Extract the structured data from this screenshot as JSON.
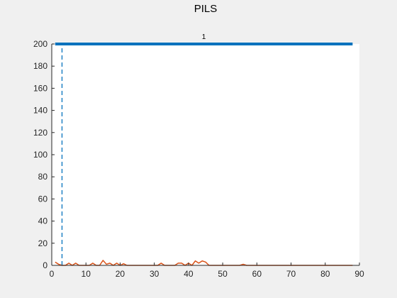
{
  "window": {
    "title": "PILS"
  },
  "chart_data": {
    "type": "line",
    "title": "PILS",
    "xlabel": "",
    "ylabel": "",
    "xlim": [
      0,
      90
    ],
    "ylim": [
      0,
      200
    ],
    "x_ticks": [
      0,
      10,
      20,
      30,
      40,
      50,
      60,
      70,
      80,
      90
    ],
    "y_ticks": [
      0,
      20,
      40,
      60,
      80,
      100,
      120,
      140,
      160,
      180,
      200
    ],
    "grid": false,
    "legend": "none",
    "colors": {
      "axes_bg": "#ffffff",
      "figure_bg": "#f0f0f0",
      "series_blue": "#0072bd",
      "series_orange": "#d95319",
      "axis": "#262626"
    },
    "top_bar": {
      "label": "1",
      "x_start": 1,
      "x_end": 88,
      "y": 200,
      "color": "#0072bd"
    },
    "marker_line": {
      "x": 3,
      "style": "dashed",
      "color": "#0072bd"
    },
    "series": [
      {
        "color": "#d95319",
        "x": [
          1,
          2,
          3,
          4,
          5,
          6,
          7,
          8,
          9,
          10,
          11,
          12,
          13,
          14,
          15,
          16,
          17,
          18,
          19,
          20,
          21,
          22,
          23,
          24,
          25,
          26,
          27,
          28,
          29,
          30,
          31,
          32,
          33,
          34,
          35,
          36,
          37,
          38,
          39,
          40,
          41,
          42,
          43,
          44,
          45,
          46,
          47,
          48,
          49,
          50,
          51,
          52,
          53,
          54,
          55,
          56,
          57,
          58,
          59,
          60,
          61,
          62,
          63,
          64,
          65,
          66,
          67,
          68,
          69,
          70,
          71,
          72,
          73,
          74,
          75,
          76,
          77,
          78,
          79,
          80,
          81,
          82,
          83,
          84,
          85,
          86,
          87,
          88
        ],
        "y": [
          3,
          1,
          0,
          0,
          2,
          0,
          2,
          0,
          0,
          0,
          0,
          2,
          0,
          0,
          4.5,
          1,
          2,
          0,
          2,
          0,
          1.5,
          0,
          0,
          0,
          0,
          0,
          0,
          0,
          0,
          0,
          0,
          2,
          0,
          0,
          0,
          0,
          2,
          2,
          0,
          2,
          0,
          4,
          2,
          4,
          3,
          0,
          0,
          0,
          0,
          0,
          0,
          0,
          0,
          0,
          0,
          1,
          0,
          0,
          0,
          0,
          0,
          0,
          0,
          0,
          0,
          0,
          0,
          0,
          0,
          0,
          0,
          0,
          0,
          0,
          0,
          0,
          0,
          0,
          0,
          0,
          0,
          0,
          0,
          0,
          0,
          0,
          0,
          0
        ]
      }
    ]
  }
}
